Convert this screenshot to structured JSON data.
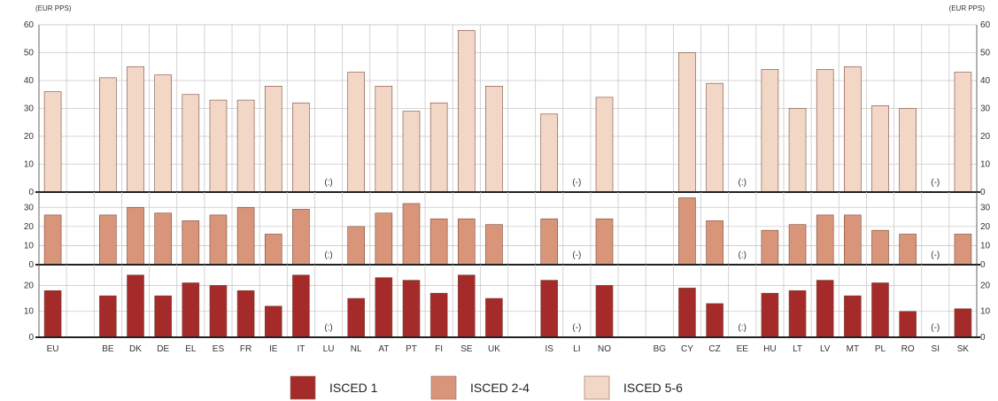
{
  "chart_data": {
    "type": "bar",
    "unit_left": "(EUR PPS)",
    "unit_right": "(EUR PPS)",
    "categories": [
      "EU",
      "",
      "BE",
      "DK",
      "DE",
      "EL",
      "ES",
      "FR",
      "IE",
      "IT",
      "LU",
      "NL",
      "AT",
      "PT",
      "FI",
      "SE",
      "UK",
      "",
      "IS",
      "LI",
      "NO",
      "",
      "BG",
      "CY",
      "CZ",
      "EE",
      "HU",
      "LT",
      "LV",
      "MT",
      "PL",
      "RO",
      "SI",
      "SK"
    ],
    "colors": {
      "ISCED 1": "#a52a2a",
      "ISCED 2-4": "#d9957a",
      "ISCED 5-6": "#f2d6c6"
    },
    "panels": [
      {
        "series": "ISCED 5-6",
        "ylim": [
          0,
          60
        ],
        "ticks": [
          "0",
          "10",
          "20",
          "30",
          "40",
          "50",
          "60"
        ],
        "values": [
          36,
          null,
          41,
          45,
          42,
          35,
          33,
          33,
          38,
          32,
          null,
          43,
          38,
          29,
          32,
          58,
          38,
          null,
          28,
          null,
          34,
          null,
          null,
          50,
          39,
          null,
          44,
          30,
          44,
          45,
          31,
          30,
          null,
          43
        ],
        "na_labels": [
          "",
          "",
          "",
          "",
          "",
          "",
          "",
          "",
          "",
          "",
          "(:)",
          "",
          "",
          "",
          "",
          "",
          "",
          "",
          "",
          "(-)",
          "",
          "",
          "",
          "",
          "",
          "(:)",
          "",
          "",
          "",
          "",
          "",
          "",
          "(-)",
          ""
        ]
      },
      {
        "series": "ISCED 2-4",
        "ylim": [
          0,
          38
        ],
        "ticks": [
          "0",
          "10",
          "20",
          "30"
        ],
        "values": [
          26,
          null,
          26,
          30,
          27,
          23,
          26,
          30,
          16,
          29,
          null,
          20,
          27,
          32,
          24,
          24,
          21,
          null,
          24,
          null,
          24,
          null,
          null,
          35,
          23,
          null,
          18,
          21,
          26,
          26,
          18,
          16,
          null,
          16
        ],
        "na_labels": [
          "",
          "",
          "",
          "",
          "",
          "",
          "",
          "",
          "",
          "",
          "(:)",
          "",
          "",
          "",
          "",
          "",
          "",
          "",
          "",
          "(-)",
          "",
          "",
          "",
          "",
          "",
          "(:)",
          "",
          "",
          "",
          "",
          "",
          "",
          "(-)",
          ""
        ]
      },
      {
        "series": "ISCED 1",
        "ylim": [
          0,
          28
        ],
        "ticks": [
          "0",
          "10",
          "20"
        ],
        "values": [
          18,
          null,
          16,
          24,
          16,
          21,
          20,
          18,
          12,
          24,
          null,
          15,
          23,
          22,
          17,
          24,
          15,
          null,
          22,
          null,
          20,
          null,
          null,
          19,
          13,
          null,
          17,
          18,
          22,
          16,
          21,
          10,
          null,
          11
        ],
        "na_labels": [
          "",
          "",
          "",
          "",
          "",
          "",
          "",
          "",
          "",
          "",
          "(:)",
          "",
          "",
          "",
          "",
          "",
          "",
          "",
          "",
          "(-)",
          "",
          "",
          "",
          "",
          "",
          "(:)",
          "",
          "",
          "",
          "",
          "",
          "",
          "(-)",
          ""
        ]
      }
    ],
    "legend": [
      {
        "label": "ISCED 1",
        "color": "#a52a2a"
      },
      {
        "label": "ISCED 2-4",
        "color": "#d9957a"
      },
      {
        "label": "ISCED 5-6",
        "color": "#f2d6c6"
      }
    ]
  }
}
